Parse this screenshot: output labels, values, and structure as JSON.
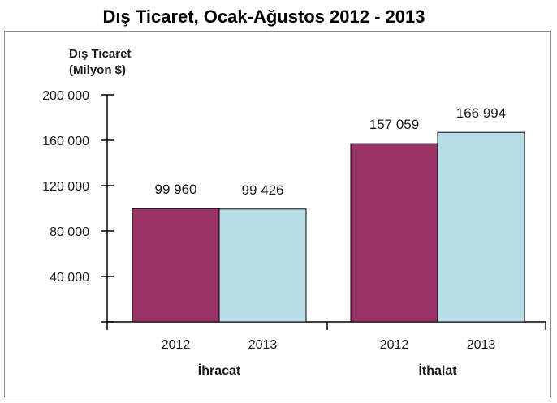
{
  "chart_data": {
    "type": "bar",
    "title": "Dış Ticaret, Ocak-Ağustos 2012 - 2013",
    "ylabel_lines": [
      "Dış Ticaret",
      "(Milyon $)"
    ],
    "ylim": [
      0,
      200000
    ],
    "yticks": [
      0,
      40000,
      80000,
      120000,
      160000,
      200000
    ],
    "ytick_labels": [
      "",
      "40 000",
      "80 000",
      "120 000",
      "160 000",
      "200 000"
    ],
    "groups": [
      {
        "name": "İhracat",
        "bars": [
          {
            "label": "2012",
            "value": 99960,
            "value_label": "99 960",
            "color": "#993366"
          },
          {
            "label": "2013",
            "value": 99426,
            "value_label": "99 426",
            "color": "#b6dde8"
          }
        ]
      },
      {
        "name": "İthalat",
        "bars": [
          {
            "label": "2012",
            "value": 157059,
            "value_label": "157 059",
            "color": "#993366"
          },
          {
            "label": "2013",
            "value": 166994,
            "value_label": "166 994",
            "color": "#b6dde8"
          }
        ]
      }
    ],
    "grid": false,
    "legend": "none"
  }
}
